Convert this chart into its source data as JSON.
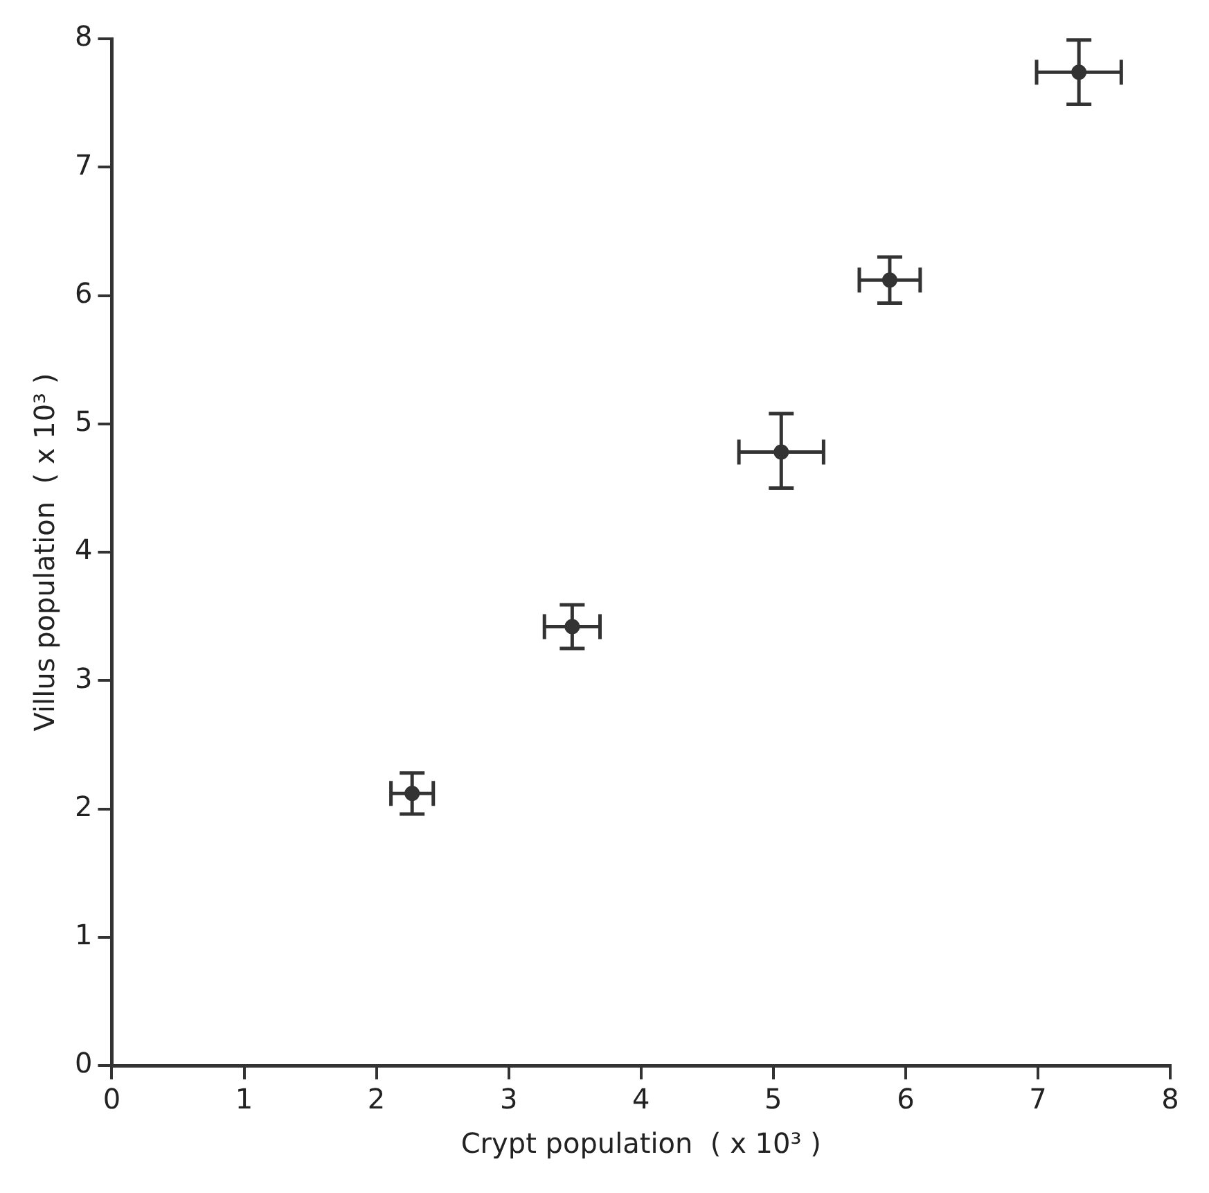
{
  "chart_data": {
    "type": "scatter",
    "xlabel": "Crypt population  ( x 10³ )",
    "ylabel": "Villus population  ( x 10³ )",
    "x": [
      2.27,
      3.48,
      5.06,
      5.88,
      7.31
    ],
    "values": [
      2.12,
      3.42,
      4.78,
      6.12,
      7.74
    ],
    "errors": [
      0.16,
      0.17,
      [
        4.5,
        5.08
      ],
      0.18,
      0.25
    ],
    "xerrors": [
      0.16,
      0.21,
      0.32,
      0.23,
      0.32
    ],
    "color": "#333333",
    "marker": "circle",
    "grid": false,
    "legend": false,
    "xlim": [
      0,
      8
    ],
    "xticks": [
      0,
      1,
      2,
      3,
      4,
      5,
      6,
      7,
      8
    ],
    "ylim": [
      0,
      8
    ],
    "yticks": [
      0,
      1,
      2,
      3,
      4,
      5,
      6,
      7,
      8
    ]
  }
}
